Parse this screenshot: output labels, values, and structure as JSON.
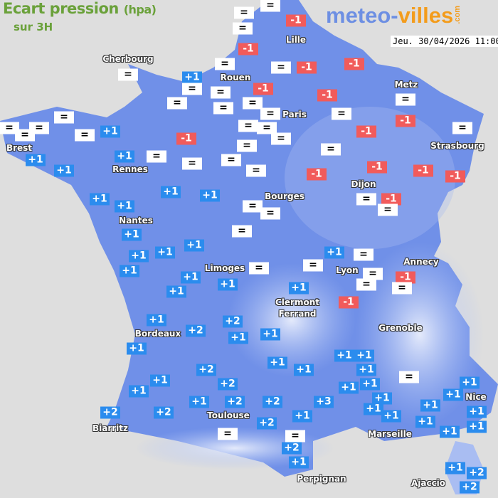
{
  "header": {
    "title": "Ecart pression",
    "unit": "(hpa)",
    "subtitle": "sur 3H",
    "date": "Jeu. 30/04/2026 11:00"
  },
  "logo": {
    "part1": "meteo-",
    "part2": "villes",
    "suffix": ".com"
  },
  "colors": {
    "land": "#7090e8",
    "land_light": "#a9bdf2",
    "sea": "#dedede",
    "positive": "#2b8cee",
    "negative": "#f15b5b",
    "neutral": "#ffffff",
    "title": "#6aa13a"
  },
  "cities": [
    "Cherbourg",
    "Lille",
    "Rouen",
    "Paris",
    "Metz",
    "Strasbourg",
    "Brest",
    "Rennes",
    "Dijon",
    "Bourges",
    "Nantes",
    "Limoges",
    "Annecy",
    "Lyon",
    "Clermont\nFerrand",
    "Grenoble",
    "Bordeaux",
    "Toulouse",
    "Marseille",
    "Nice",
    "Biarritz",
    "Perpignan",
    "Ajaccio"
  ],
  "markers": [
    "=",
    "=",
    "=",
    "-1",
    "-1",
    "=",
    "=",
    "-1",
    "-1",
    "+1",
    "=",
    "-1",
    "=",
    "=",
    "=",
    "-1",
    "=",
    "=",
    "=",
    "=",
    "-1",
    "=",
    "=",
    "-1",
    "=",
    "=",
    "=",
    "=",
    "=",
    "=",
    "=",
    "=",
    "+1",
    "-1",
    "=",
    "=",
    "+1",
    "=",
    "+1",
    "=",
    "=",
    "+1",
    "=",
    "-1",
    "-1",
    "-1",
    "-1",
    "+1",
    "+1",
    "+1",
    "+1",
    "=",
    "-1",
    "=",
    "=",
    "=",
    "=",
    "+1",
    "+1",
    "+1",
    "+1",
    "+1",
    "=",
    "+1",
    "+1",
    "=",
    "=",
    "=",
    "-1",
    "=",
    "=",
    "+1",
    "+1",
    "+1",
    "-1",
    "+1",
    "+2",
    "+2",
    "+1",
    "+1",
    "+1",
    "+1",
    "+1",
    "+1",
    "+1",
    "+2",
    "+1",
    "=",
    "+1",
    "+2",
    "+1",
    "+1",
    "+1",
    "+1",
    "+1",
    "+1",
    "+1",
    "+2",
    "+2",
    "+3",
    "+1",
    "+1",
    "+1",
    "+2",
    "+2",
    "+1",
    "+1",
    "+2",
    "+1",
    "+1",
    "+1",
    "=",
    "=",
    "+2",
    "+1",
    "+1",
    "+2",
    "+2",
    "+2"
  ]
}
